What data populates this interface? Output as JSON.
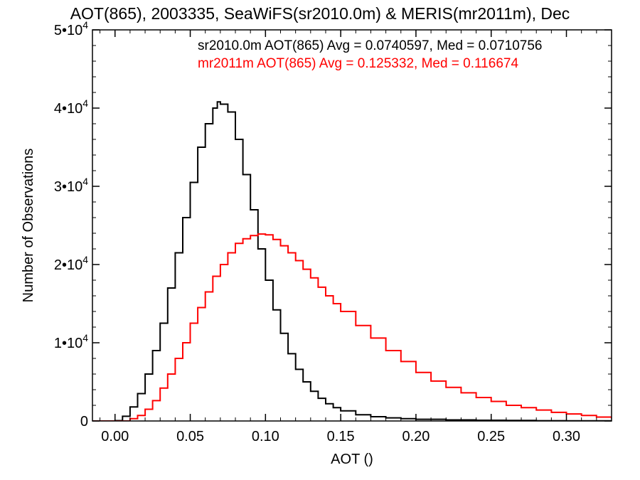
{
  "chart_data": {
    "type": "line",
    "title": "AOT(865), 2003335, SeaWiFS(sr2010.0m) & MERIS(mr2011m), Dec",
    "xlabel": "AOT ()",
    "ylabel": "Number of Observations",
    "xlim": [
      -0.015,
      0.33
    ],
    "ylim": [
      0,
      50000
    ],
    "x_ticks": [
      0.0,
      0.05,
      0.1,
      0.15,
      0.2,
      0.25,
      0.3
    ],
    "x_tick_labels": [
      "0.00",
      "0.05",
      "0.10",
      "0.15",
      "0.20",
      "0.25",
      "0.30"
    ],
    "y_ticks": [
      0,
      10000,
      20000,
      30000,
      40000,
      50000
    ],
    "y_tick_labels": [
      {
        "mantissa": "0",
        "exponent": ""
      },
      {
        "mantissa": "1•10",
        "exponent": "4"
      },
      {
        "mantissa": "2•10",
        "exponent": "4"
      },
      {
        "mantissa": "3•10",
        "exponent": "4"
      },
      {
        "mantissa": "4•10",
        "exponent": "4"
      },
      {
        "mantissa": "5•10",
        "exponent": "4"
      }
    ],
    "grid": false,
    "legend_position": "top-right",
    "series": [
      {
        "label": "sr2010.0m AOT(865) Avg = 0.0740597, Med = 0.0710756",
        "color": "#000000",
        "step": true,
        "x": [
          -0.015,
          0.0,
          0.005,
          0.01,
          0.015,
          0.02,
          0.025,
          0.03,
          0.035,
          0.04,
          0.045,
          0.05,
          0.055,
          0.06,
          0.065,
          0.068,
          0.07,
          0.075,
          0.08,
          0.085,
          0.09,
          0.095,
          0.1,
          0.105,
          0.11,
          0.115,
          0.12,
          0.125,
          0.13,
          0.135,
          0.14,
          0.145,
          0.15,
          0.16,
          0.17,
          0.18,
          0.19,
          0.2,
          0.22,
          0.24,
          0.26,
          0.28,
          0.3,
          0.33
        ],
        "y": [
          0,
          50,
          600,
          1800,
          3500,
          6000,
          9000,
          12500,
          17000,
          21500,
          26000,
          30500,
          35000,
          38000,
          40000,
          40800,
          40500,
          39500,
          36000,
          31500,
          27000,
          22000,
          18000,
          14200,
          11200,
          8600,
          6600,
          5000,
          3800,
          2900,
          2200,
          1700,
          1300,
          800,
          550,
          400,
          300,
          220,
          140,
          90,
          60,
          40,
          30,
          20
        ]
      },
      {
        "label": "mr2011m AOT(865) Avg = 0.125332, Med = 0.116674",
        "color": "#ff0000",
        "step": true,
        "x": [
          -0.015,
          0.0,
          0.01,
          0.015,
          0.02,
          0.025,
          0.03,
          0.035,
          0.04,
          0.045,
          0.05,
          0.055,
          0.06,
          0.065,
          0.07,
          0.075,
          0.08,
          0.085,
          0.09,
          0.095,
          0.1,
          0.105,
          0.11,
          0.115,
          0.12,
          0.125,
          0.13,
          0.135,
          0.14,
          0.145,
          0.15,
          0.16,
          0.17,
          0.18,
          0.19,
          0.2,
          0.21,
          0.22,
          0.23,
          0.24,
          0.25,
          0.26,
          0.27,
          0.28,
          0.29,
          0.3,
          0.31,
          0.32,
          0.33
        ],
        "y": [
          0,
          0,
          300,
          700,
          1500,
          2600,
          4200,
          6000,
          8000,
          10000,
          12500,
          14500,
          16500,
          18500,
          20000,
          21500,
          22700,
          23300,
          23700,
          23900,
          23800,
          23200,
          22400,
          21500,
          20500,
          19400,
          18300,
          17100,
          16000,
          15000,
          14000,
          12200,
          10600,
          9000,
          7600,
          6200,
          5100,
          4300,
          3600,
          3000,
          2500,
          2000,
          1700,
          1400,
          1100,
          900,
          700,
          500,
          300
        ]
      }
    ]
  }
}
